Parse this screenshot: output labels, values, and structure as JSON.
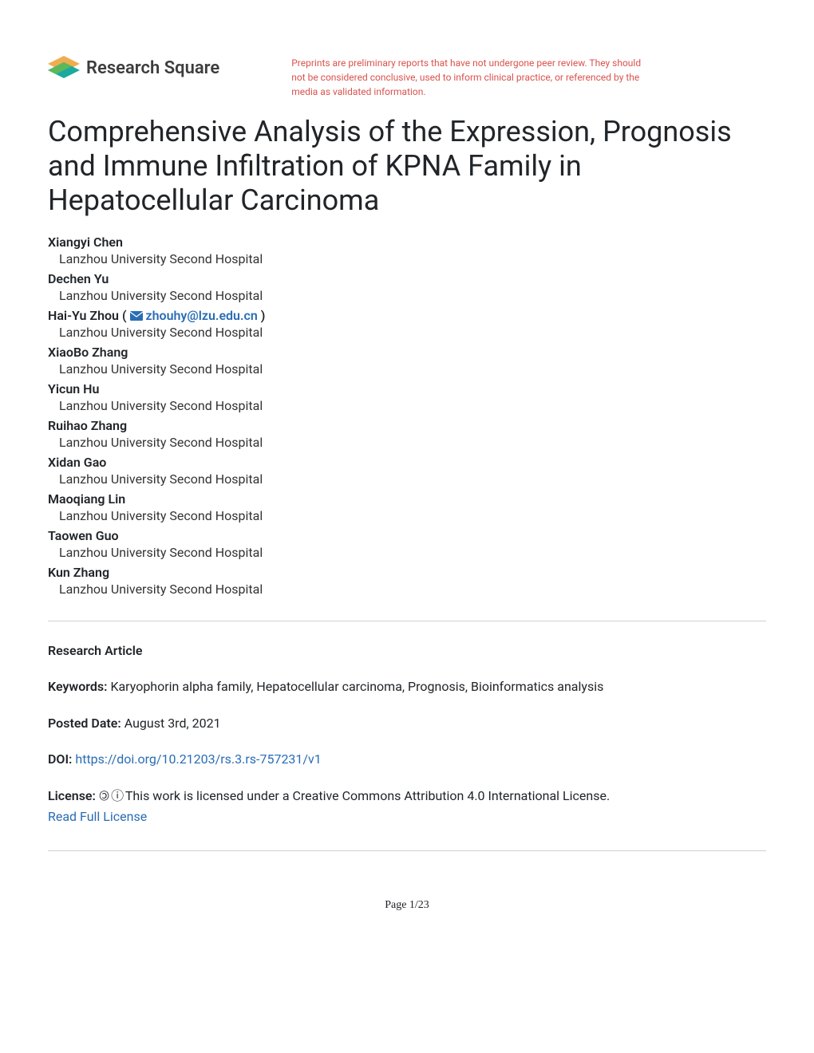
{
  "header": {
    "logo_text": "Research Square",
    "disclaimer": "Preprints are preliminary reports that have not undergone peer review. They should not be considered conclusive, used to inform clinical practice, or referenced by the media as validated information."
  },
  "title": "Comprehensive Analysis of the Expression, Prognosis and Immune Infiltration of KPNA Family in Hepatocellular Carcinoma",
  "authors": [
    {
      "name": "Xiangyi Chen",
      "affiliation": "Lanzhou University Second Hospital",
      "email": null
    },
    {
      "name": "Dechen Yu",
      "affiliation": "Lanzhou University Second Hospital",
      "email": null
    },
    {
      "name": "Hai-Yu Zhou",
      "affiliation": "Lanzhou University Second Hospital",
      "email": "zhouhy@lzu.edu.cn"
    },
    {
      "name": "XiaoBo Zhang",
      "affiliation": "Lanzhou University Second Hospital",
      "email": null
    },
    {
      "name": "Yicun Hu",
      "affiliation": "Lanzhou University Second Hospital",
      "email": null
    },
    {
      "name": "Ruihao Zhang",
      "affiliation": "Lanzhou University Second Hospital",
      "email": null
    },
    {
      "name": "Xidan Gao",
      "affiliation": "Lanzhou University Second Hospital",
      "email": null
    },
    {
      "name": "Maoqiang Lin",
      "affiliation": "Lanzhou University Second Hospital",
      "email": null
    },
    {
      "name": "Taowen Guo",
      "affiliation": "Lanzhou University Second Hospital",
      "email": null
    },
    {
      "name": "Kun Zhang",
      "affiliation": "Lanzhou University Second Hospital",
      "email": null
    }
  ],
  "metadata": {
    "article_type_label": "Research Article",
    "keywords_label": "Keywords:",
    "keywords_value": "Karyophorin alpha family, Hepatocellular carcinoma, Prognosis, Bioinformatics analysis",
    "posted_label": "Posted Date:",
    "posted_value": "August 3rd, 2021",
    "doi_label": "DOI:",
    "doi_value": "https://doi.org/10.21203/rs.3.rs-757231/v1",
    "license_label": "License:",
    "license_text": "This work is licensed under a Creative Commons Attribution 4.0 International License.",
    "license_link_text": "Read Full License"
  },
  "page_number": "Page 1/23",
  "colors": {
    "text": "#212529",
    "disclaimer": "#d9534f",
    "link": "#2a6db5",
    "logo_green": "#5cb85c",
    "logo_yellow": "#f0ad4e",
    "logo_teal": "#1ca9a0"
  }
}
